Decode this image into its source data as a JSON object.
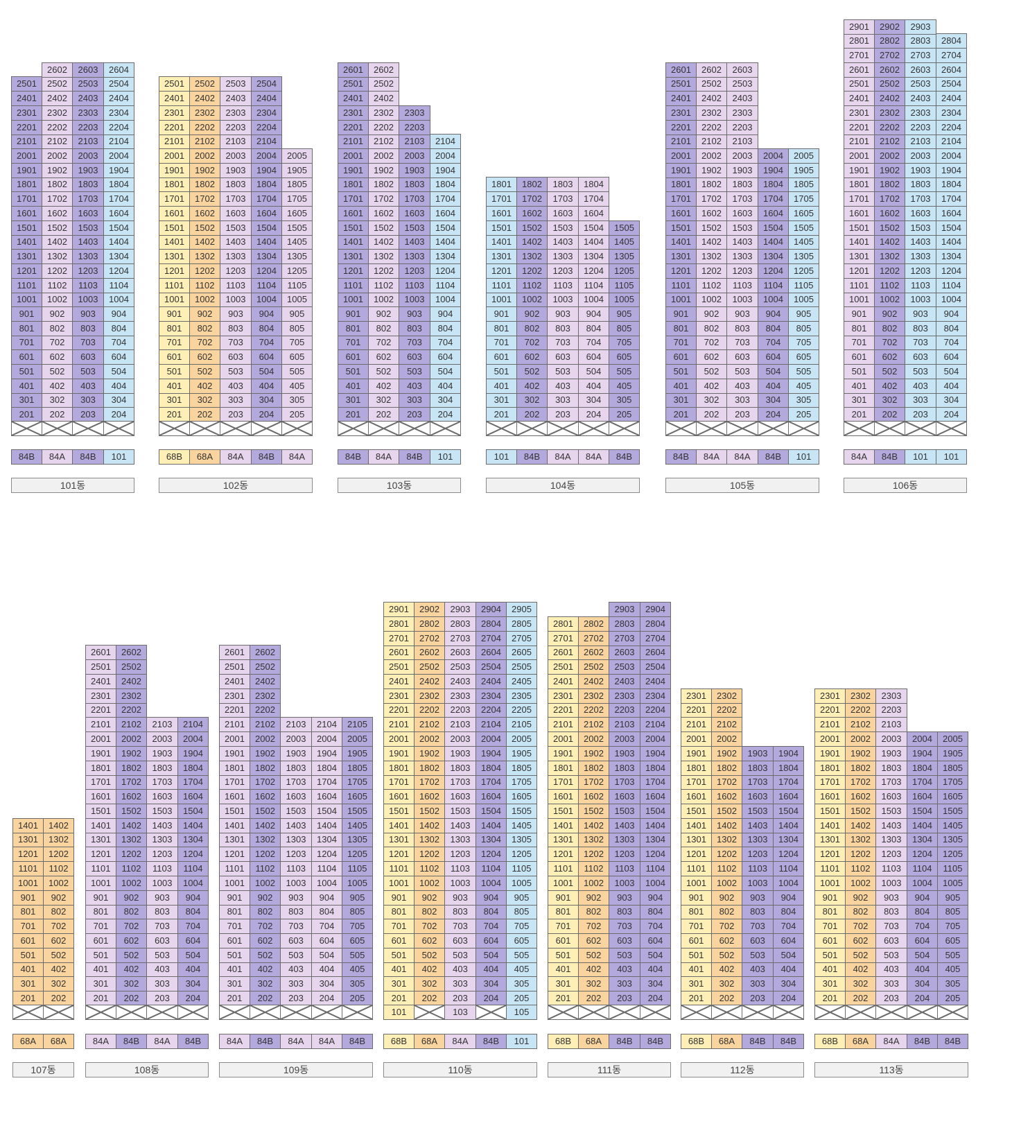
{
  "colors": {
    "P": "#e7d5ee",
    "V": "#b3a9dd",
    "B": "#c7e5f5",
    "Y": "#fdefb6",
    "O": "#f9d49e",
    "W": "#ffffff"
  },
  "buildings": [
    {
      "name": "101동",
      "types": [
        "84B",
        "84A",
        "84B",
        "101"
      ],
      "lines": [
        {
          "color": "V",
          "top": 25
        },
        {
          "color": "P",
          "top": 26
        },
        {
          "color": "V",
          "top": 26
        },
        {
          "color": "B",
          "top": 26
        }
      ],
      "pilotis": [
        "",
        "",
        "",
        ""
      ]
    },
    {
      "name": "102동",
      "types": [
        "68B",
        "68A",
        "84A",
        "84B",
        "84A"
      ],
      "lines": [
        {
          "color": "Y",
          "top": 25
        },
        {
          "color": "O",
          "top": 25
        },
        {
          "color": "P",
          "top": 25
        },
        {
          "color": "V",
          "top": 25
        },
        {
          "color": "P",
          "top": 20
        }
      ],
      "pilotis": [
        "",
        "",
        "",
        "",
        ""
      ]
    },
    {
      "name": "103동",
      "types": [
        "84B",
        "84A",
        "84B",
        "101"
      ],
      "lines": [
        {
          "color": "V",
          "top": 26
        },
        {
          "color": "P",
          "top": 26
        },
        {
          "color": "V",
          "top": 23
        },
        {
          "color": "B",
          "top": 21
        }
      ],
      "pilotis": [
        "",
        "",
        "",
        ""
      ]
    },
    {
      "name": "104동",
      "types": [
        "101",
        "84B",
        "84A",
        "84A",
        "84B"
      ],
      "lines": [
        {
          "color": "B",
          "top": 18
        },
        {
          "color": "V",
          "top": 18
        },
        {
          "color": "P",
          "top": 18
        },
        {
          "color": "P",
          "top": 18
        },
        {
          "color": "V",
          "top": 15
        }
      ],
      "pilotis": [
        "",
        "",
        "",
        "",
        ""
      ]
    },
    {
      "name": "105동",
      "types": [
        "84B",
        "84A",
        "84A",
        "84B",
        "101"
      ],
      "lines": [
        {
          "color": "V",
          "top": 26
        },
        {
          "color": "P",
          "top": 26
        },
        {
          "color": "P",
          "top": 26
        },
        {
          "color": "V",
          "top": 20
        },
        {
          "color": "B",
          "top": 20
        }
      ],
      "pilotis": [
        "",
        "",
        "",
        "",
        ""
      ]
    },
    {
      "name": "106동",
      "types": [
        "84A",
        "84B",
        "101",
        "101"
      ],
      "lines": [
        {
          "color": "P",
          "top": 29
        },
        {
          "color": "V",
          "top": 29
        },
        {
          "color": "B",
          "top": 29
        },
        {
          "color": "B",
          "top": 28
        }
      ],
      "pilotis": [
        "",
        "",
        "",
        ""
      ]
    },
    {
      "name": "107동",
      "types": [
        "68A",
        "68A"
      ],
      "lines": [
        {
          "color": "O",
          "top": 14
        },
        {
          "color": "O",
          "top": 14
        }
      ],
      "pilotis": [
        "",
        ""
      ]
    },
    {
      "name": "108동",
      "types": [
        "84A",
        "84B",
        "84A",
        "84B"
      ],
      "lines": [
        {
          "color": "P",
          "top": 26
        },
        {
          "color": "V",
          "top": 26
        },
        {
          "color": "P",
          "top": 21
        },
        {
          "color": "V",
          "top": 21
        }
      ],
      "pilotis": [
        "",
        "",
        "",
        ""
      ]
    },
    {
      "name": "109동",
      "types": [
        "84A",
        "84B",
        "84A",
        "84A",
        "84B"
      ],
      "lines": [
        {
          "color": "P",
          "top": 26
        },
        {
          "color": "V",
          "top": 26
        },
        {
          "color": "P",
          "top": 21
        },
        {
          "color": "P",
          "top": 21
        },
        {
          "color": "V",
          "top": 21
        }
      ],
      "pilotis": [
        "",
        "",
        "",
        "",
        ""
      ]
    },
    {
      "name": "110동",
      "types": [
        "68B",
        "68A",
        "84A",
        "84B",
        "101"
      ],
      "lines": [
        {
          "color": "Y",
          "top": 29
        },
        {
          "color": "O",
          "top": 29
        },
        {
          "color": "P",
          "top": 29
        },
        {
          "color": "V",
          "top": 29
        },
        {
          "color": "B",
          "top": 29
        }
      ],
      "pilotis": [
        "101",
        "",
        "103",
        "",
        "105"
      ]
    },
    {
      "name": "111동",
      "types": [
        "68B",
        "68A",
        "84B",
        "84B"
      ],
      "lines": [
        {
          "color": "Y",
          "top": 28
        },
        {
          "color": "O",
          "top": 28
        },
        {
          "color": "V",
          "top": 29
        },
        {
          "color": "V",
          "top": 29
        }
      ],
      "pilotis": [
        "",
        "",
        "",
        ""
      ]
    },
    {
      "name": "112동",
      "types": [
        "68B",
        "68A",
        "84B",
        "84B"
      ],
      "lines": [
        {
          "color": "Y",
          "top": 23
        },
        {
          "color": "O",
          "top": 23
        },
        {
          "color": "V",
          "top": 19
        },
        {
          "color": "V",
          "top": 19
        }
      ],
      "pilotis": [
        "",
        "",
        "",
        ""
      ]
    },
    {
      "name": "113동",
      "types": [
        "68B",
        "68A",
        "84A",
        "84B",
        "84B"
      ],
      "lines": [
        {
          "color": "Y",
          "top": 23
        },
        {
          "color": "O",
          "top": 23
        },
        {
          "color": "P",
          "top": 23
        },
        {
          "color": "V",
          "top": 20
        },
        {
          "color": "V",
          "top": 20
        }
      ],
      "pilotis": [
        "",
        "",
        "",
        "",
        ""
      ]
    }
  ]
}
